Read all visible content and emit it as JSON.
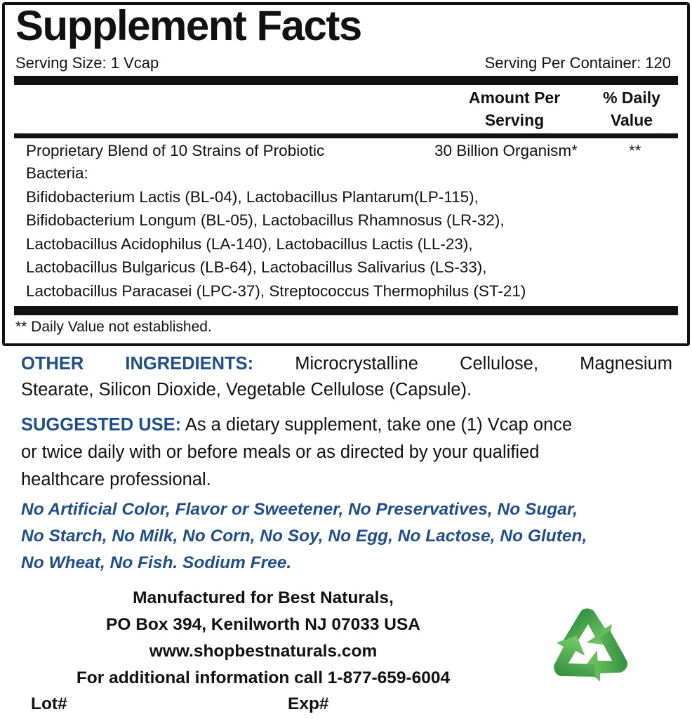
{
  "facts": {
    "title": "Supplement Facts",
    "serving_size": "Serving Size: 1 Vcap",
    "servings_per_container": "Serving Per Container: 120",
    "col_amount_line1": "Amount Per",
    "col_amount_line2": "Serving",
    "col_dv_line1": "% Daily",
    "col_dv_line2": "Value",
    "blend_name_line1": "Proprietary Blend of 10 Strains of Probiotic",
    "blend_name_line2": "Bacteria:",
    "blend_amount": "30 Billion Organism*",
    "blend_dv": "**",
    "strains": [
      "Bifidobacterium Lactis (BL-04), Lactobacillus Plantarum(LP-115),",
      "Bifidobacterium Longum (BL-05), Lactobacillus Rhamnosus (LR-32),",
      "Lactobacillus Acidophilus (LA-140), Lactobacillus Lactis (LL-23),",
      "Lactobacillus Bulgaricus (LB-64), Lactobacillus Salivarius (LS-33),",
      "Lactobacillus Paracasei (LPC-37), Streptococcus Thermophilus (ST-21)"
    ],
    "footnote": "** Daily Value not established."
  },
  "other_ingredients": {
    "label": "OTHER INGREDIENTS:",
    "line1": "Microcrystalline Cellulose, Magnesium",
    "line2": "Stearate, Silicon Dioxide, Vegetable Cellulose (Capsule)."
  },
  "suggested_use": {
    "label": "SUGGESTED USE:",
    "line1": "As a dietary supplement, take one (1) Vcap once",
    "line2": "or twice daily with or before meals or as directed by your qualified",
    "line3": "healthcare professional."
  },
  "free_from": [
    "No Artificial Color, Flavor or Sweetener, No Preservatives, No Sugar,",
    "No Starch, No Milk, No Corn, No Soy, No Egg, No Lactose, No Gluten,",
    "No Wheat, No Fish. Sodium Free."
  ],
  "manufacturer": {
    "line1": "Manufactured for Best Naturals,",
    "line2": "PO Box 394, Kenilworth NJ 07033 USA",
    "website": "www.shopbestnaturals.com",
    "phone_line": "For additional information call 1-877-659-6004",
    "lot_label": "Lot#",
    "exp_label": "Exp#"
  },
  "icons": {
    "recycle": "recycle-icon"
  },
  "colors": {
    "accent_blue": "#1f4e8c",
    "recycle_green": "#3aa845"
  }
}
